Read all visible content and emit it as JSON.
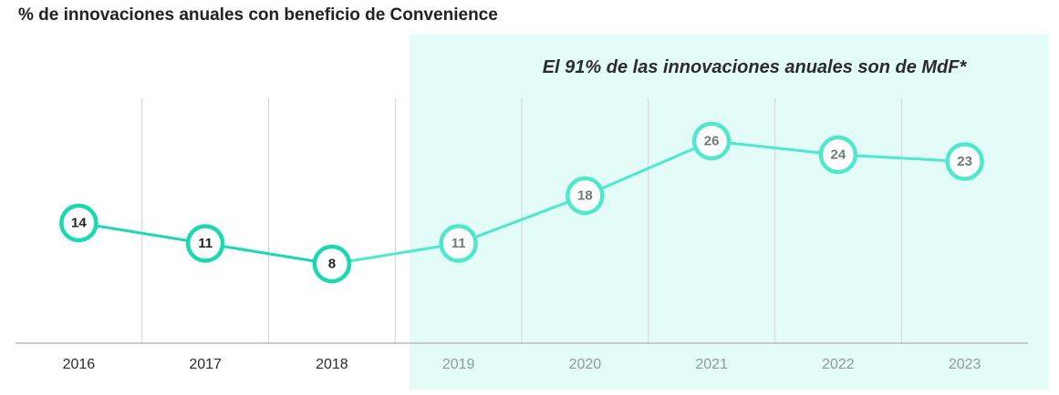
{
  "chart_data": {
    "type": "line",
    "title": "% de innovaciones anuales con beneficio de Convenience",
    "annotation": "El 91% de las innovaciones anuales son de MdF*",
    "highlight_from": "2019",
    "categories": [
      "2016",
      "2017",
      "2018",
      "2019",
      "2020",
      "2021",
      "2022",
      "2023"
    ],
    "values": [
      14,
      11,
      8,
      11,
      18,
      26,
      24,
      23
    ],
    "ylim": [
      0,
      30
    ],
    "grid": "vertical",
    "colors": {
      "past_line": "#1ad9b2",
      "future_line": "#4fe8cc",
      "past_label": "#222222",
      "future_label": "#6e7a78",
      "highlight_band": "#e3fcf8"
    }
  }
}
